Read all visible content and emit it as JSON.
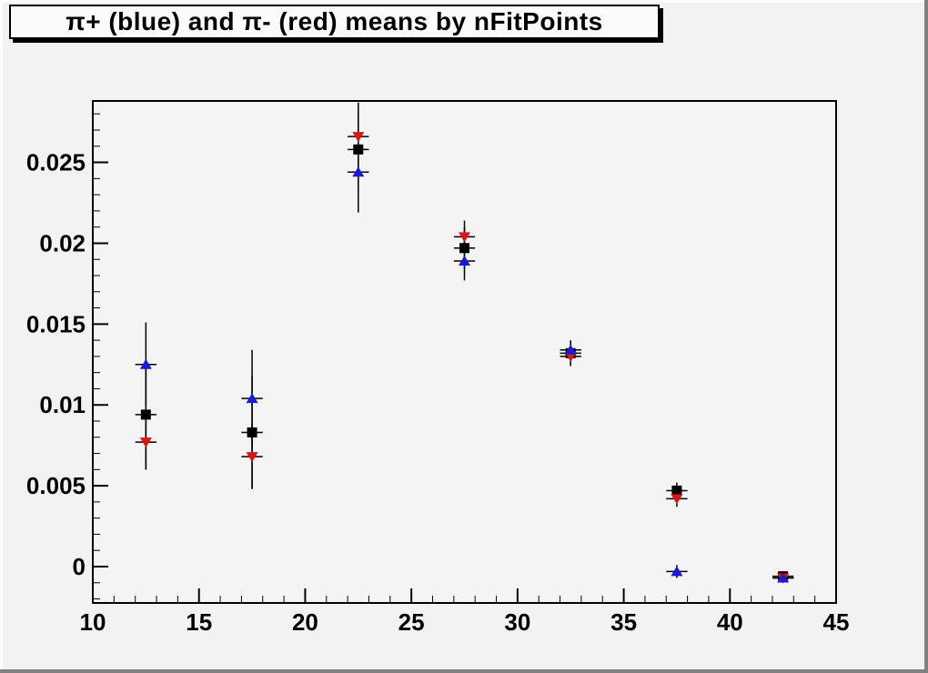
{
  "window": {
    "bg_color": "#f2f2f2",
    "bevel_light_color": "#fdfdfd",
    "bevel_dark_color": "#818181"
  },
  "title_box": {
    "bg_color": "#fbfbfb",
    "border_color": "#000000",
    "shadow_color": "#000000"
  },
  "chart_data": {
    "type": "scatter",
    "title": "π+ (blue) and π- (red) means by nFitPoints",
    "xlabel": "",
    "ylabel": "",
    "grid": false,
    "legend": "none",
    "frame_bg": "#f4f4f4",
    "axis_color": "#000000",
    "xlim": [
      10,
      45
    ],
    "ylim": [
      -0.00225,
      0.0288
    ],
    "x_major_ticks": [
      10,
      15,
      20,
      25,
      30,
      35,
      40,
      45
    ],
    "x_tick_labels": [
      "10",
      "15",
      "20",
      "25",
      "30",
      "35",
      "40",
      "45"
    ],
    "x_minor_step": 1,
    "y_major_ticks": [
      0,
      0.005,
      0.01,
      0.015,
      0.02,
      0.025
    ],
    "y_tick_labels": [
      "0",
      "0.005",
      "0.01",
      "0.015",
      "0.02",
      "0.025"
    ],
    "y_minor_step": 0.001,
    "x_error_halfwidth": 0.5,
    "series": [
      {
        "name": "mean-black-squares",
        "marker": "square",
        "color": "#000000",
        "points": [
          {
            "x": 12.5,
            "y": 0.0094,
            "ey": 0.0034
          },
          {
            "x": 17.5,
            "y": 0.0083,
            "ey": 0.0035
          },
          {
            "x": 22.5,
            "y": 0.0258,
            "ey": 0.0025
          },
          {
            "x": 27.5,
            "y": 0.0197,
            "ey": 0.0013
          },
          {
            "x": 32.5,
            "y": 0.0132,
            "ey": 0.0007
          },
          {
            "x": 37.5,
            "y": 0.0047,
            "ey": 0.0005
          },
          {
            "x": 42.5,
            "y": -0.0006,
            "ey": 0.0003
          }
        ]
      },
      {
        "name": "pi-minus-red-triangles",
        "marker": "triangle-down",
        "color": "#dc1414",
        "points": [
          {
            "x": 12.5,
            "y": 0.0077,
            "ey": 0.0017
          },
          {
            "x": 17.5,
            "y": 0.0068,
            "ey": 0.002
          },
          {
            "x": 22.5,
            "y": 0.0266,
            "ey": 0.0021
          },
          {
            "x": 27.5,
            "y": 0.0204,
            "ey": 0.001
          },
          {
            "x": 32.5,
            "y": 0.013,
            "ey": 0.0006
          },
          {
            "x": 37.5,
            "y": 0.0042,
            "ey": 0.0005
          },
          {
            "x": 42.5,
            "y": -0.0007,
            "ey": 0.0003
          }
        ]
      },
      {
        "name": "pi-plus-blue-triangles",
        "marker": "triangle-up",
        "color": "#1a1ad6",
        "points": [
          {
            "x": 12.5,
            "y": 0.0125,
            "ey": 0.0026
          },
          {
            "x": 17.5,
            "y": 0.0104,
            "ey": 0.003
          },
          {
            "x": 22.5,
            "y": 0.0244,
            "ey": 0.0025
          },
          {
            "x": 27.5,
            "y": 0.0189,
            "ey": 0.0012
          },
          {
            "x": 32.5,
            "y": 0.0134,
            "ey": 0.0006
          },
          {
            "x": 37.5,
            "y": -0.0003,
            "ey": 0.0004
          },
          {
            "x": 42.5,
            "y": -0.0007,
            "ey": 0.0003
          }
        ]
      }
    ]
  }
}
